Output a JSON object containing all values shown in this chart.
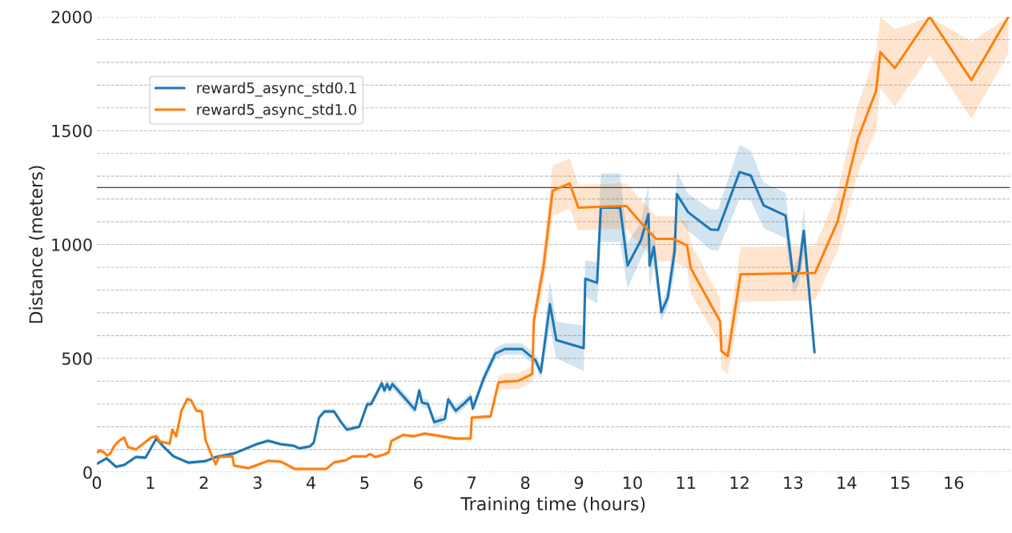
{
  "chart_data": {
    "type": "line",
    "xlabel": "Training time (hours)",
    "ylabel": "Distance (meters)",
    "xlim": [
      0,
      17.05
    ],
    "ylim": [
      0,
      2000
    ],
    "xticks": [
      0,
      1,
      2,
      3,
      4,
      5,
      6,
      7,
      8,
      9,
      10,
      11,
      12,
      13,
      14,
      15,
      16
    ],
    "yticks": [
      0,
      {
        "value": 100,
        "label": null
      },
      {
        "value": 200,
        "label": null
      },
      {
        "value": 300,
        "label": null
      },
      {
        "value": 400,
        "label": null
      },
      500,
      {
        "value": 600,
        "label": null
      },
      {
        "value": 700,
        "label": null
      },
      {
        "value": 800,
        "label": null
      },
      {
        "value": 900,
        "label": null
      },
      1000,
      {
        "value": 1100,
        "label": null
      },
      {
        "value": 1200,
        "label": null
      },
      {
        "value": 1300,
        "label": null
      },
      {
        "value": 1400,
        "label": null
      },
      1500,
      {
        "value": 1600,
        "label": null
      },
      {
        "value": 1700,
        "label": null
      },
      {
        "value": 1800,
        "label": null
      },
      {
        "value": 1900,
        "label": null
      },
      2000
    ],
    "grid": "y",
    "legend": "top left",
    "line_style": "solid",
    "ref_lines": [
      {
        "axis": "y",
        "value": 1250,
        "color": "#404040"
      }
    ],
    "series": [
      {
        "name": "reward5_async_std0.1",
        "color": "#1f77b4",
        "x": [
          0.01,
          0.18,
          0.36,
          0.51,
          0.73,
          0.91,
          1.11,
          1.23,
          1.43,
          1.71,
          2.03,
          2.23,
          2.58,
          2.98,
          3.2,
          3.43,
          3.68,
          3.78,
          3.98,
          4.05,
          4.15,
          4.25,
          4.43,
          4.55,
          4.67,
          4.9,
          5.05,
          5.12,
          5.32,
          5.37,
          5.42,
          5.47,
          5.52,
          5.94,
          6.02,
          6.07,
          6.18,
          6.3,
          6.5,
          6.56,
          6.7,
          6.85,
          6.98,
          7.02,
          7.22,
          7.44,
          7.62,
          7.94,
          8.19,
          8.29,
          8.46,
          8.58,
          9.09,
          9.12,
          9.34,
          9.41,
          9.77,
          9.91,
          10.16,
          10.3,
          10.32,
          10.4,
          10.54,
          10.66,
          10.79,
          10.83,
          11.04,
          11.46,
          11.6,
          12.0,
          12.21,
          12.45,
          12.86,
          13.01,
          13.11,
          13.2,
          13.4
        ],
        "values": [
          38,
          61,
          24,
          32,
          67,
          64,
          148,
          116,
          70,
          42,
          49,
          67,
          84,
          123,
          138,
          123,
          116,
          105,
          114,
          130,
          240,
          267,
          267,
          223,
          187,
          200,
          299,
          299,
          390,
          359,
          387,
          363,
          387,
          275,
          359,
          306,
          300,
          220,
          235,
          320,
          270,
          300,
          330,
          280,
          410,
          521,
          541,
          541,
          492,
          439,
          738,
          580,
          545,
          850,
          832,
          1162,
          1162,
          908,
          1019,
          1134,
          908,
          990,
          703,
          767,
          973,
          1221,
          1142,
          1066,
          1064,
          1318,
          1303,
          1172,
          1127,
          838,
          890,
          1060,
          527
        ],
        "lower": [
          30,
          53,
          16,
          24,
          59,
          56,
          140,
          108,
          62,
          34,
          41,
          59,
          76,
          115,
          130,
          115,
          108,
          97,
          106,
          122,
          230,
          257,
          257,
          213,
          177,
          190,
          285,
          285,
          370,
          339,
          367,
          343,
          367,
          255,
          339,
          286,
          280,
          200,
          215,
          300,
          250,
          280,
          310,
          260,
          385,
          496,
          516,
          516,
          467,
          409,
          638,
          500,
          445,
          770,
          742,
          1012,
          1012,
          808,
          939,
          1004,
          808,
          910,
          663,
          727,
          873,
          1121,
          1062,
          976,
          974,
          1198,
          1193,
          1072,
          1027,
          778,
          830,
          960,
          517
        ],
        "upper": [
          46,
          69,
          32,
          40,
          75,
          72,
          156,
          124,
          78,
          50,
          57,
          75,
          92,
          131,
          146,
          131,
          124,
          113,
          122,
          138,
          250,
          277,
          277,
          233,
          197,
          210,
          313,
          313,
          410,
          379,
          407,
          383,
          407,
          295,
          379,
          326,
          320,
          240,
          255,
          340,
          290,
          320,
          350,
          300,
          435,
          546,
          566,
          566,
          517,
          469,
          838,
          660,
          645,
          930,
          922,
          1312,
          1312,
          1008,
          1099,
          1264,
          1008,
          1070,
          743,
          807,
          1073,
          1321,
          1222,
          1156,
          1154,
          1438,
          1413,
          1272,
          1227,
          898,
          950,
          1160,
          537
        ]
      },
      {
        "name": "reward5_async_std1.0",
        "color": "#ff7f0e",
        "x": [
          0.01,
          0.06,
          0.13,
          0.19,
          0.25,
          0.33,
          0.43,
          0.51,
          0.58,
          0.73,
          1.01,
          1.11,
          1.18,
          1.36,
          1.41,
          1.48,
          1.58,
          1.69,
          1.76,
          1.86,
          1.96,
          2.03,
          2.13,
          2.22,
          2.28,
          2.53,
          2.56,
          2.83,
          3.2,
          3.43,
          3.7,
          4.28,
          4.43,
          4.65,
          4.78,
          5.03,
          5.1,
          5.2,
          5.37,
          5.45,
          5.5,
          5.72,
          5.92,
          6.12,
          6.7,
          6.98,
          7.0,
          7.35,
          7.5,
          7.62,
          7.87,
          8.13,
          8.16,
          8.34,
          8.51,
          8.83,
          8.99,
          9.77,
          9.89,
          10.16,
          10.44,
          10.76,
          11.02,
          11.09,
          11.64,
          11.66,
          11.78,
          12.02,
          13.41,
          13.83,
          14.21,
          14.55,
          14.63,
          14.9,
          15.55,
          16.33,
          17.02
        ],
        "values": [
          88,
          96,
          88,
          73,
          82,
          117,
          141,
          152,
          111,
          100,
          152,
          158,
          135,
          125,
          187,
          158,
          270,
          322,
          316,
          270,
          267,
          141,
          82,
          35,
          67,
          70,
          29,
          18,
          50,
          47,
          14,
          14,
          43,
          53,
          70,
          70,
          80,
          67,
          78,
          88,
          137,
          164,
          158,
          170,
          148,
          148,
          240,
          245,
          394,
          398,
          401,
          431,
          668,
          902,
          1236,
          1268,
          1162,
          1169,
          1169,
          1096,
          1025,
          1025,
          996,
          896,
          662,
          533,
          510,
          869,
          875,
          1101,
          1465,
          1675,
          1845,
          1775,
          2000,
          1722,
          2000
        ],
        "lower": [
          80,
          88,
          80,
          65,
          74,
          109,
          133,
          144,
          103,
          92,
          144,
          150,
          127,
          117,
          179,
          150,
          262,
          310,
          304,
          262,
          259,
          133,
          74,
          27,
          59,
          62,
          21,
          10,
          42,
          39,
          6,
          6,
          35,
          45,
          62,
          62,
          72,
          59,
          70,
          80,
          129,
          156,
          150,
          162,
          140,
          140,
          230,
          235,
          364,
          363,
          366,
          396,
          628,
          822,
          1126,
          1158,
          1062,
          1069,
          1069,
          996,
          925,
          925,
          896,
          786,
          562,
          453,
          430,
          749,
          755,
          971,
          1315,
          1505,
          1685,
          1605,
          1830,
          1552,
          1840
        ],
        "upper": [
          96,
          104,
          96,
          81,
          90,
          125,
          149,
          160,
          119,
          108,
          160,
          166,
          143,
          133,
          195,
          166,
          278,
          334,
          328,
          278,
          275,
          149,
          90,
          43,
          75,
          78,
          37,
          26,
          58,
          55,
          22,
          22,
          51,
          61,
          78,
          78,
          88,
          75,
          86,
          96,
          145,
          172,
          166,
          178,
          156,
          156,
          250,
          255,
          424,
          433,
          436,
          466,
          708,
          982,
          1346,
          1378,
          1262,
          1269,
          1269,
          1196,
          1125,
          1125,
          1096,
          1006,
          762,
          613,
          590,
          989,
          995,
          1231,
          1615,
          1845,
          2000,
          1945,
          2000,
          1892,
          2000
        ]
      }
    ]
  }
}
